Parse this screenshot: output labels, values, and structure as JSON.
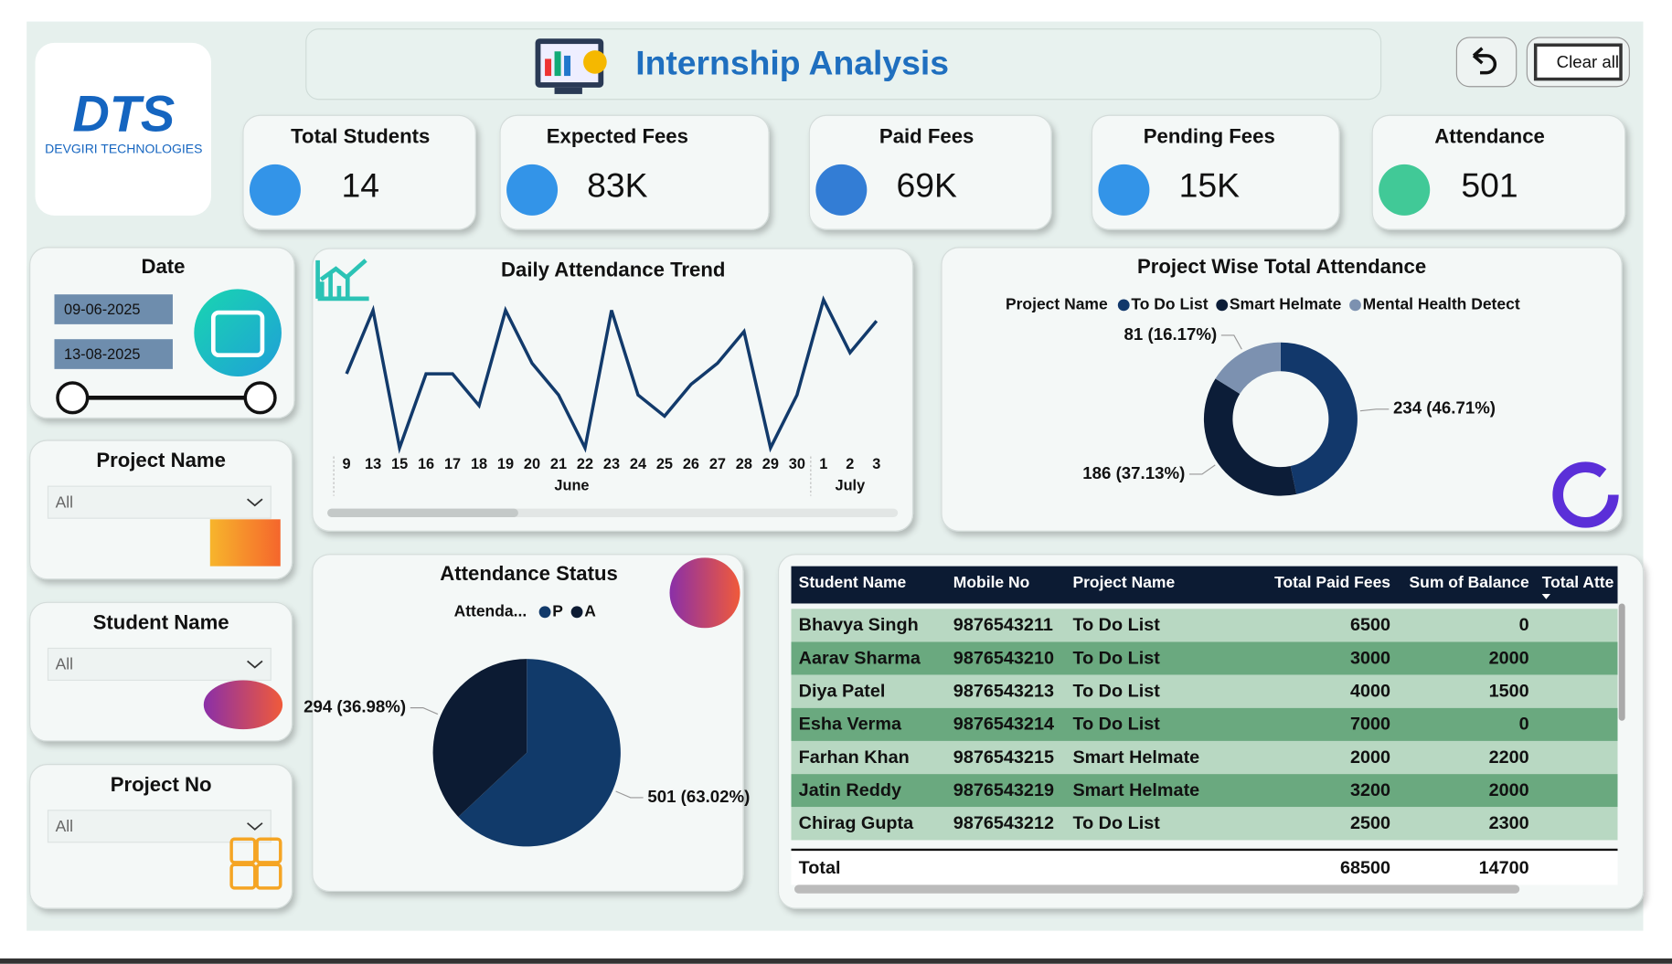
{
  "header": {
    "title": "Internship Analysis",
    "logo": "DTS",
    "company": "DEVGIRI TECHNOLOGIES",
    "clear_button": "Clear all"
  },
  "kpis": [
    {
      "label": "Total Students",
      "value": "14"
    },
    {
      "label": "Expected Fees",
      "value": "83K"
    },
    {
      "label": "Paid Fees",
      "value": "69K"
    },
    {
      "label": "Pending Fees",
      "value": "15K"
    },
    {
      "label": "Attendance",
      "value": "501"
    }
  ],
  "filters": {
    "date": {
      "title": "Date",
      "start": "09-06-2025",
      "end": "13-08-2025"
    },
    "dropdowns": [
      {
        "title": "Project Name",
        "value": "All"
      },
      {
        "title": "Student Name",
        "value": "All"
      },
      {
        "title": "Project No",
        "value": "All"
      }
    ]
  },
  "chart_data": [
    {
      "type": "line",
      "title": "Daily Attendance Trend",
      "color": "#123a6b",
      "groups": [
        {
          "label": "June",
          "categories": [
            "9",
            "13",
            "15",
            "16",
            "17",
            "18",
            "19",
            "20",
            "21",
            "22",
            "23",
            "24",
            "25",
            "26",
            "27",
            "28",
            "29",
            "30"
          ],
          "values": [
            24,
            30,
            17,
            24,
            24,
            21,
            30,
            25,
            22,
            17,
            30,
            22,
            20,
            23,
            25,
            28,
            17,
            22
          ]
        },
        {
          "label": "July",
          "categories": [
            "1",
            "2",
            "3"
          ],
          "values": [
            31,
            26,
            29
          ]
        }
      ]
    },
    {
      "type": "donut",
      "title": "Project Wise Total Attendance",
      "legend_title": "Project Name",
      "categories": [
        "To Do List",
        "Smart Helmate",
        "Mental Health Detect"
      ],
      "values": [
        234,
        186,
        81
      ],
      "value_labels": [
        "234 (46.71%)",
        "186 (37.13%)",
        "81 (16.17%)"
      ],
      "colors": [
        "#12386b",
        "#0c1d38",
        "#7c91b0"
      ]
    },
    {
      "type": "pie",
      "title": "Attendance Status",
      "legend_title": "Attenda...",
      "categories": [
        "P",
        "A"
      ],
      "values": [
        501,
        294
      ],
      "value_labels": [
        "501 (63.02%)",
        "294 (36.98%)"
      ],
      "colors": [
        "#113a6a",
        "#0c1b33"
      ]
    }
  ],
  "table": {
    "columns": [
      "Student Name",
      "Mobile No",
      "Project Name",
      "Total Paid Fees",
      "Sum of Balance",
      "Total Atte"
    ],
    "rows": [
      [
        "Bhavya Singh",
        "9876543211",
        "To Do List",
        6500,
        0
      ],
      [
        "Aarav Sharma",
        "9876543210",
        "To Do List",
        3000,
        2000
      ],
      [
        "Diya Patel",
        "9876543213",
        "To Do List",
        4000,
        1500
      ],
      [
        "Esha Verma",
        "9876543214",
        "To Do List",
        7000,
        0
      ],
      [
        "Farhan Khan",
        "9876543215",
        "Smart Helmate",
        2000,
        2200
      ],
      [
        "Jatin Reddy",
        "9876543219",
        "Smart Helmate",
        3200,
        2000
      ],
      [
        "Chirag Gupta",
        "9876543212",
        "To Do List",
        2500,
        2300
      ]
    ],
    "total": {
      "label": "Total",
      "paid": 68500,
      "balance": 14700
    }
  }
}
